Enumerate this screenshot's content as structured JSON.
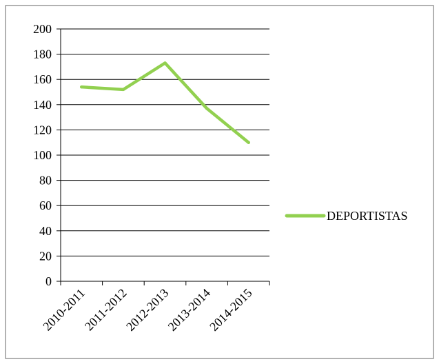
{
  "chart_data": {
    "type": "line",
    "categories": [
      "2010-2011",
      "2011-2012",
      "2012-2013",
      "2013-2014",
      "2014-2015"
    ],
    "series": [
      {
        "name": "DEPORTISTAS",
        "values": [
          154,
          152,
          173,
          137,
          110
        ]
      }
    ],
    "ylim": [
      0,
      200
    ],
    "yticks": [
      0,
      20,
      40,
      60,
      80,
      100,
      120,
      140,
      160,
      180,
      200
    ],
    "grid": true,
    "legend_position": "right",
    "line_color": "#92d050"
  }
}
